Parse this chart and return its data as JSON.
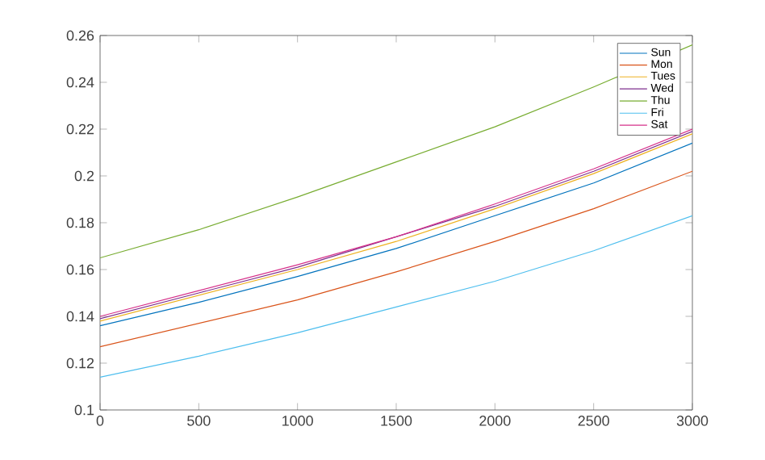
{
  "chart_data": {
    "type": "line",
    "x": [
      0,
      500,
      1000,
      1500,
      2000,
      2500,
      3000
    ],
    "series": [
      {
        "name": "Sun",
        "color": "#0072bd",
        "values": [
          0.136,
          0.146,
          0.157,
          0.169,
          0.183,
          0.197,
          0.214
        ]
      },
      {
        "name": "Mon",
        "color": "#d95319",
        "values": [
          0.127,
          0.137,
          0.147,
          0.159,
          0.172,
          0.186,
          0.202
        ]
      },
      {
        "name": "Tues",
        "color": "#edb120",
        "values": [
          0.138,
          0.149,
          0.16,
          0.172,
          0.186,
          0.201,
          0.218
        ]
      },
      {
        "name": "Wed",
        "color": "#7e2f8e",
        "values": [
          0.139,
          0.15,
          0.161,
          0.174,
          0.187,
          0.202,
          0.219
        ]
      },
      {
        "name": "Thu",
        "color": "#77ac30",
        "values": [
          0.165,
          0.177,
          0.191,
          0.206,
          0.221,
          0.238,
          0.256
        ]
      },
      {
        "name": "Fri",
        "color": "#4dbeee",
        "values": [
          0.114,
          0.123,
          0.133,
          0.144,
          0.155,
          0.168,
          0.183
        ]
      },
      {
        "name": "Sat",
        "color": "#d6308a",
        "values": [
          0.14,
          0.151,
          0.162,
          0.174,
          0.188,
          0.203,
          0.22
        ]
      }
    ],
    "xlim": [
      0,
      3000
    ],
    "xticks": [
      0,
      500,
      1000,
      1500,
      2000,
      2500,
      3000
    ],
    "ylim": [
      0.1,
      0.26
    ],
    "yticks": [
      0.1,
      0.12,
      0.14,
      0.16,
      0.18,
      0.2,
      0.22,
      0.24,
      0.26
    ],
    "legend": "top right",
    "grid": false,
    "marker": "none",
    "line_style": "solid"
  }
}
